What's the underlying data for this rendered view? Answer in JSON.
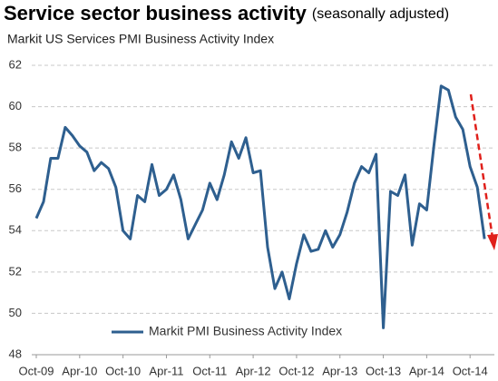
{
  "chart_data": {
    "type": "line",
    "title": "Service sector business activity",
    "title_note": "(seasonally adjusted)",
    "subtitle": "Markit US Services PMI Business Activity Index",
    "categories": [
      "Oct-09",
      null,
      null,
      null,
      null,
      null,
      "Apr-10",
      null,
      null,
      null,
      null,
      null,
      "Oct-10",
      null,
      null,
      null,
      null,
      null,
      "Apr-11",
      null,
      null,
      null,
      null,
      null,
      "Oct-11",
      null,
      null,
      null,
      null,
      null,
      "Apr-12",
      null,
      null,
      null,
      null,
      null,
      "Oct-12",
      null,
      null,
      null,
      null,
      null,
      "Apr-13",
      null,
      null,
      null,
      null,
      null,
      "Oct-13",
      null,
      null,
      null,
      null,
      null,
      "Apr-14",
      null,
      null,
      null,
      null,
      null,
      "Oct-14",
      null,
      null
    ],
    "series": [
      {
        "name": "Markit PMI Business Activity Index",
        "color": "#2e5f8f",
        "values": [
          54.6,
          55.4,
          57.5,
          57.5,
          59.0,
          58.6,
          58.1,
          57.8,
          56.9,
          57.3,
          57.0,
          56.1,
          54.0,
          53.6,
          55.7,
          55.4,
          57.2,
          55.7,
          56.0,
          56.7,
          55.5,
          53.6,
          54.3,
          55.0,
          56.3,
          55.5,
          56.7,
          58.3,
          57.5,
          58.5,
          56.8,
          56.9,
          53.2,
          51.2,
          52.0,
          50.7,
          52.4,
          53.8,
          53.0,
          53.1,
          54.0,
          53.2,
          53.8,
          54.9,
          56.3,
          57.1,
          56.8,
          57.7,
          49.3,
          55.9,
          55.7,
          56.7,
          53.3,
          55.3,
          55.0,
          58.1,
          61.0,
          60.8,
          59.5,
          58.9,
          57.1,
          56.1,
          53.6
        ]
      }
    ],
    "ylim": [
      48,
      62
    ],
    "yticks": [
      48,
      50,
      52,
      54,
      56,
      58,
      60,
      62
    ],
    "grid": true
  }
}
